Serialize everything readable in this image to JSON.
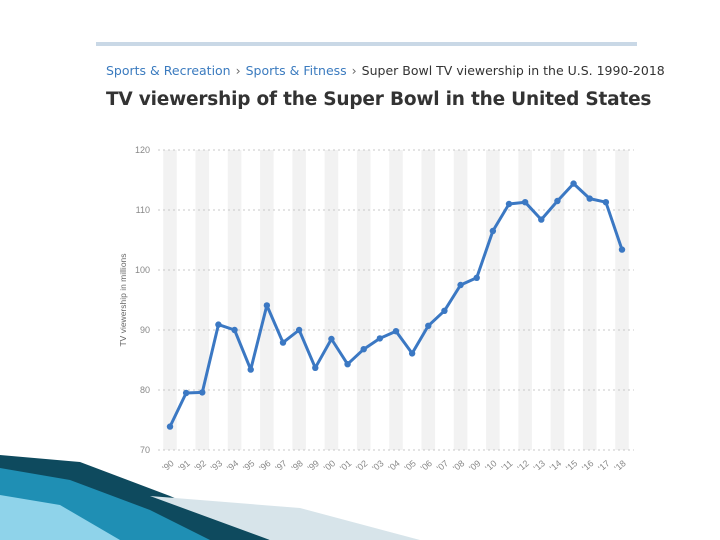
{
  "breadcrumb": {
    "items": [
      "Sports & Recreation",
      "Sports & Fitness",
      "Super Bowl TV viewership in the U.S. 1990-2018"
    ],
    "separator": "›"
  },
  "chart_data": {
    "type": "line",
    "title": "TV viewership of the Super Bowl in the United States",
    "xlabel": "",
    "ylabel": "TV viewership in millions",
    "x": [
      "'90",
      "'91",
      "'92",
      "'93",
      "'94",
      "'95",
      "'96",
      "'97",
      "'98",
      "'99",
      "'00",
      "'01",
      "'02",
      "'03",
      "'04",
      "'05",
      "'06",
      "'07",
      "'08",
      "'09",
      "'10",
      "'11",
      "'12",
      "'13",
      "'14",
      "'15",
      "'16",
      "'17",
      "'18"
    ],
    "series": [
      {
        "values": [
          73.9,
          79.5,
          79.6,
          90.9,
          90.0,
          83.4,
          94.1,
          87.9,
          90.0,
          83.7,
          88.5,
          84.3,
          86.8,
          88.6,
          89.8,
          86.1,
          90.7,
          93.2,
          97.5,
          98.7,
          106.5,
          111.0,
          111.3,
          108.4,
          111.5,
          114.4,
          111.9,
          111.3,
          103.4
        ]
      }
    ],
    "yticks": [
      70,
      80,
      90,
      100,
      110,
      120
    ],
    "ylim": [
      70,
      120
    ],
    "grid": true,
    "legend": "none",
    "colors": {
      "line": "#3b78c3",
      "band": "#f2f2f2",
      "grid": "#c8c8c8",
      "tick": "#888888"
    }
  },
  "decoration": {
    "colors": {
      "dark": "#0e4a5e",
      "mid": "#1f8fb4",
      "light": "#8fd3ea"
    }
  }
}
